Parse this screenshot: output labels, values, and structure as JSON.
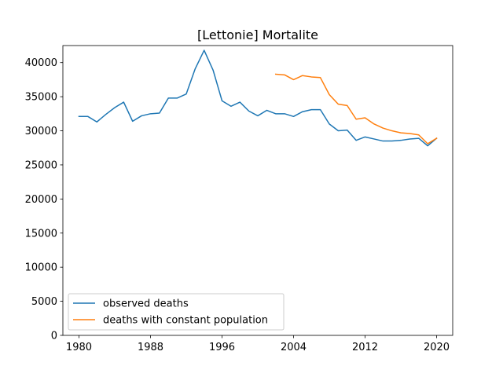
{
  "chart_data": {
    "type": "line",
    "title": "[Lettonie] Mortalite",
    "xlabel": "",
    "ylabel": "",
    "xlim": [
      1978.2,
      2021.8
    ],
    "ylim": [
      0,
      42500
    ],
    "x_ticks": [
      1980,
      1988,
      1996,
      2004,
      2012,
      2020
    ],
    "y_ticks": [
      0,
      5000,
      10000,
      15000,
      20000,
      25000,
      30000,
      35000,
      40000
    ],
    "grid": false,
    "legend_position": "lower-left",
    "series": [
      {
        "name": "observed deaths",
        "color": "#1f77b4",
        "x": [
          1980,
          1981,
          1982,
          1983,
          1984,
          1985,
          1986,
          1987,
          1988,
          1989,
          1990,
          1991,
          1992,
          1993,
          1994,
          1995,
          1996,
          1997,
          1998,
          1999,
          2000,
          2001,
          2002,
          2003,
          2004,
          2005,
          2006,
          2007,
          2008,
          2009,
          2010,
          2011,
          2012,
          2013,
          2014,
          2015,
          2016,
          2017,
          2018,
          2019,
          2020
        ],
        "values": [
          32100,
          32100,
          31300,
          32400,
          33400,
          34200,
          31400,
          32200,
          32500,
          32600,
          34800,
          34800,
          35400,
          39100,
          41800,
          38900,
          34400,
          33600,
          34200,
          32900,
          32200,
          33000,
          32500,
          32500,
          32100,
          32800,
          33100,
          33100,
          31000,
          30000,
          30100,
          28600,
          29100,
          28800,
          28500,
          28500,
          28600,
          28800,
          28900,
          27800,
          28900
        ]
      },
      {
        "name": "deaths with constant population",
        "color": "#ff7f0e",
        "x": [
          2002,
          2003,
          2004,
          2005,
          2006,
          2007,
          2008,
          2009,
          2010,
          2011,
          2012,
          2013,
          2014,
          2015,
          2016,
          2017,
          2018,
          2019,
          2020
        ],
        "values": [
          38300,
          38200,
          37500,
          38100,
          37900,
          37800,
          35300,
          33900,
          33700,
          31700,
          31900,
          31000,
          30400,
          30000,
          29700,
          29600,
          29400,
          28100,
          28900
        ]
      }
    ]
  }
}
